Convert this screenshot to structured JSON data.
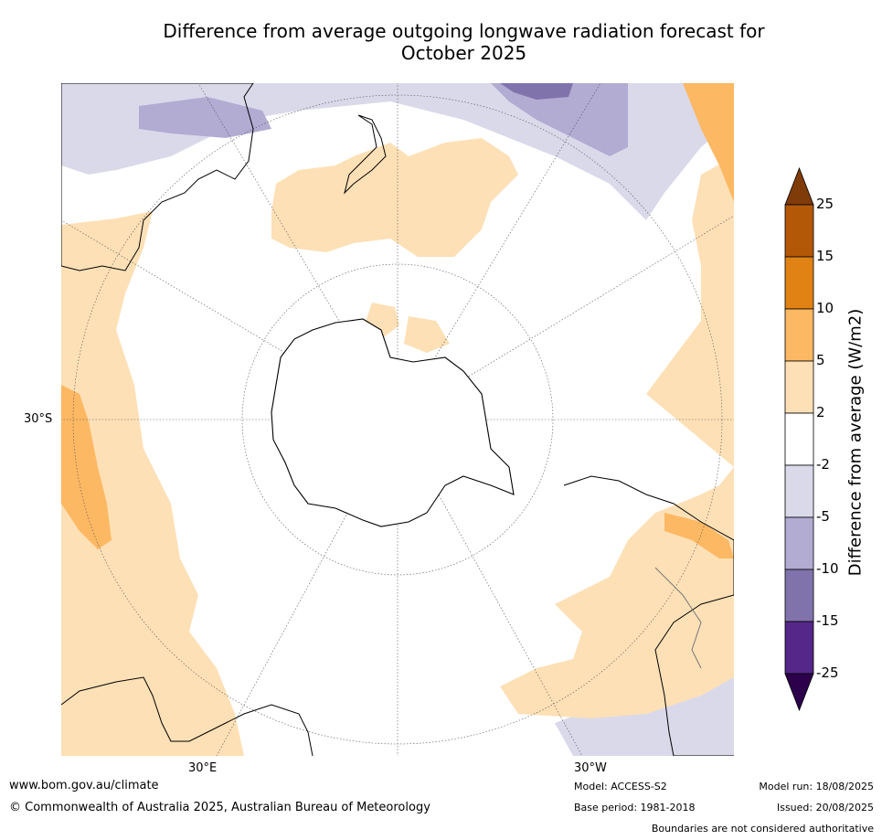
{
  "title_line1": "Difference from average outgoing longwave radiation forecast for",
  "title_line2": "October 2025",
  "map": {
    "projection": "south-polar-stereographic",
    "ocean_color": "#ffffff",
    "land_outline_color": "#000000",
    "lat_labels": [
      {
        "text": "30°S"
      }
    ],
    "lon_labels": [
      {
        "text": "30°E"
      },
      {
        "text": "30°W"
      }
    ],
    "regions": [
      {
        "name": "australia-east-reduced",
        "category": "-5 to -2",
        "color": "#d9d9ea"
      },
      {
        "name": "new-zealand-region-increased",
        "category": "2 to 5",
        "color": "#fde0b6"
      },
      {
        "name": "south-america-increased",
        "category": "2 to 5",
        "color": "#fde0b6"
      },
      {
        "name": "south-atlantic-increased",
        "category": "5 to 10",
        "color": "#fdb863"
      },
      {
        "name": "indian-ocean-increased",
        "category": "2 to 5",
        "color": "#fde0b6"
      },
      {
        "name": "pacific-north-reduced",
        "category": "-10 to -5",
        "color": "#b2abd2"
      }
    ]
  },
  "colorbar": {
    "title": "Difference from average (W/m2)",
    "ticks": [
      "25",
      "15",
      "10",
      "5",
      "2",
      "-2",
      "-5",
      "-10",
      "-15",
      "-25"
    ],
    "colors": [
      "#7f3b08",
      "#b35806",
      "#e08214",
      "#fdb863",
      "#fde0b6",
      "#ffffff",
      "#d9d9ea",
      "#b2abd2",
      "#8073ac",
      "#542788",
      "#2d004b"
    ]
  },
  "footer": {
    "website": "www.bom.gov.au/climate",
    "copyright": "© Commonwealth of Australia 2025, Australian Bureau of Meteorology",
    "model": "Model: ACCESS-S2",
    "base_period": "Base period: 1981-2018",
    "model_run": "Model run: 18/08/2025",
    "issued": "Issued: 20/08/2025",
    "disclaimer": "Boundaries are not considered authoritative"
  }
}
